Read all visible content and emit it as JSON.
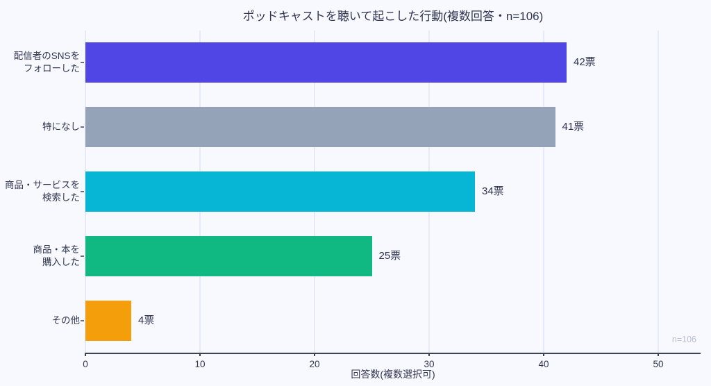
{
  "chart_data": {
    "type": "bar",
    "orientation": "horizontal",
    "title": "ポッドキャストを聴いて起こした行動(複数回答・n=106)",
    "xlabel": "回答数(複数選択可)",
    "ylabel": "",
    "annotation": "n=106",
    "categories": [
      "配信者のSNSを\nフォローした",
      "特になし",
      "商品・サービスを\n検索した",
      "商品・本を\n購入した",
      "その他"
    ],
    "values": [
      42,
      41,
      34,
      25,
      4
    ],
    "value_labels": [
      "42票",
      "41票",
      "34票",
      "25票",
      "4票"
    ],
    "bar_colors": [
      "#4F46E5",
      "#94A3B8",
      "#06B6D4",
      "#10B981",
      "#F59E0B"
    ],
    "x_ticks": [
      0,
      10,
      20,
      30,
      40,
      50
    ],
    "xlim": [
      0,
      50
    ],
    "grid": "vertical-only",
    "legend": "none",
    "n_total": 106,
    "colors": {
      "background": "#F8F9FE",
      "gridline": "#E4EAF9",
      "axis_line": "#3C4254",
      "text": "#2F3550",
      "annotation_text": "#B9BFD2"
    }
  }
}
